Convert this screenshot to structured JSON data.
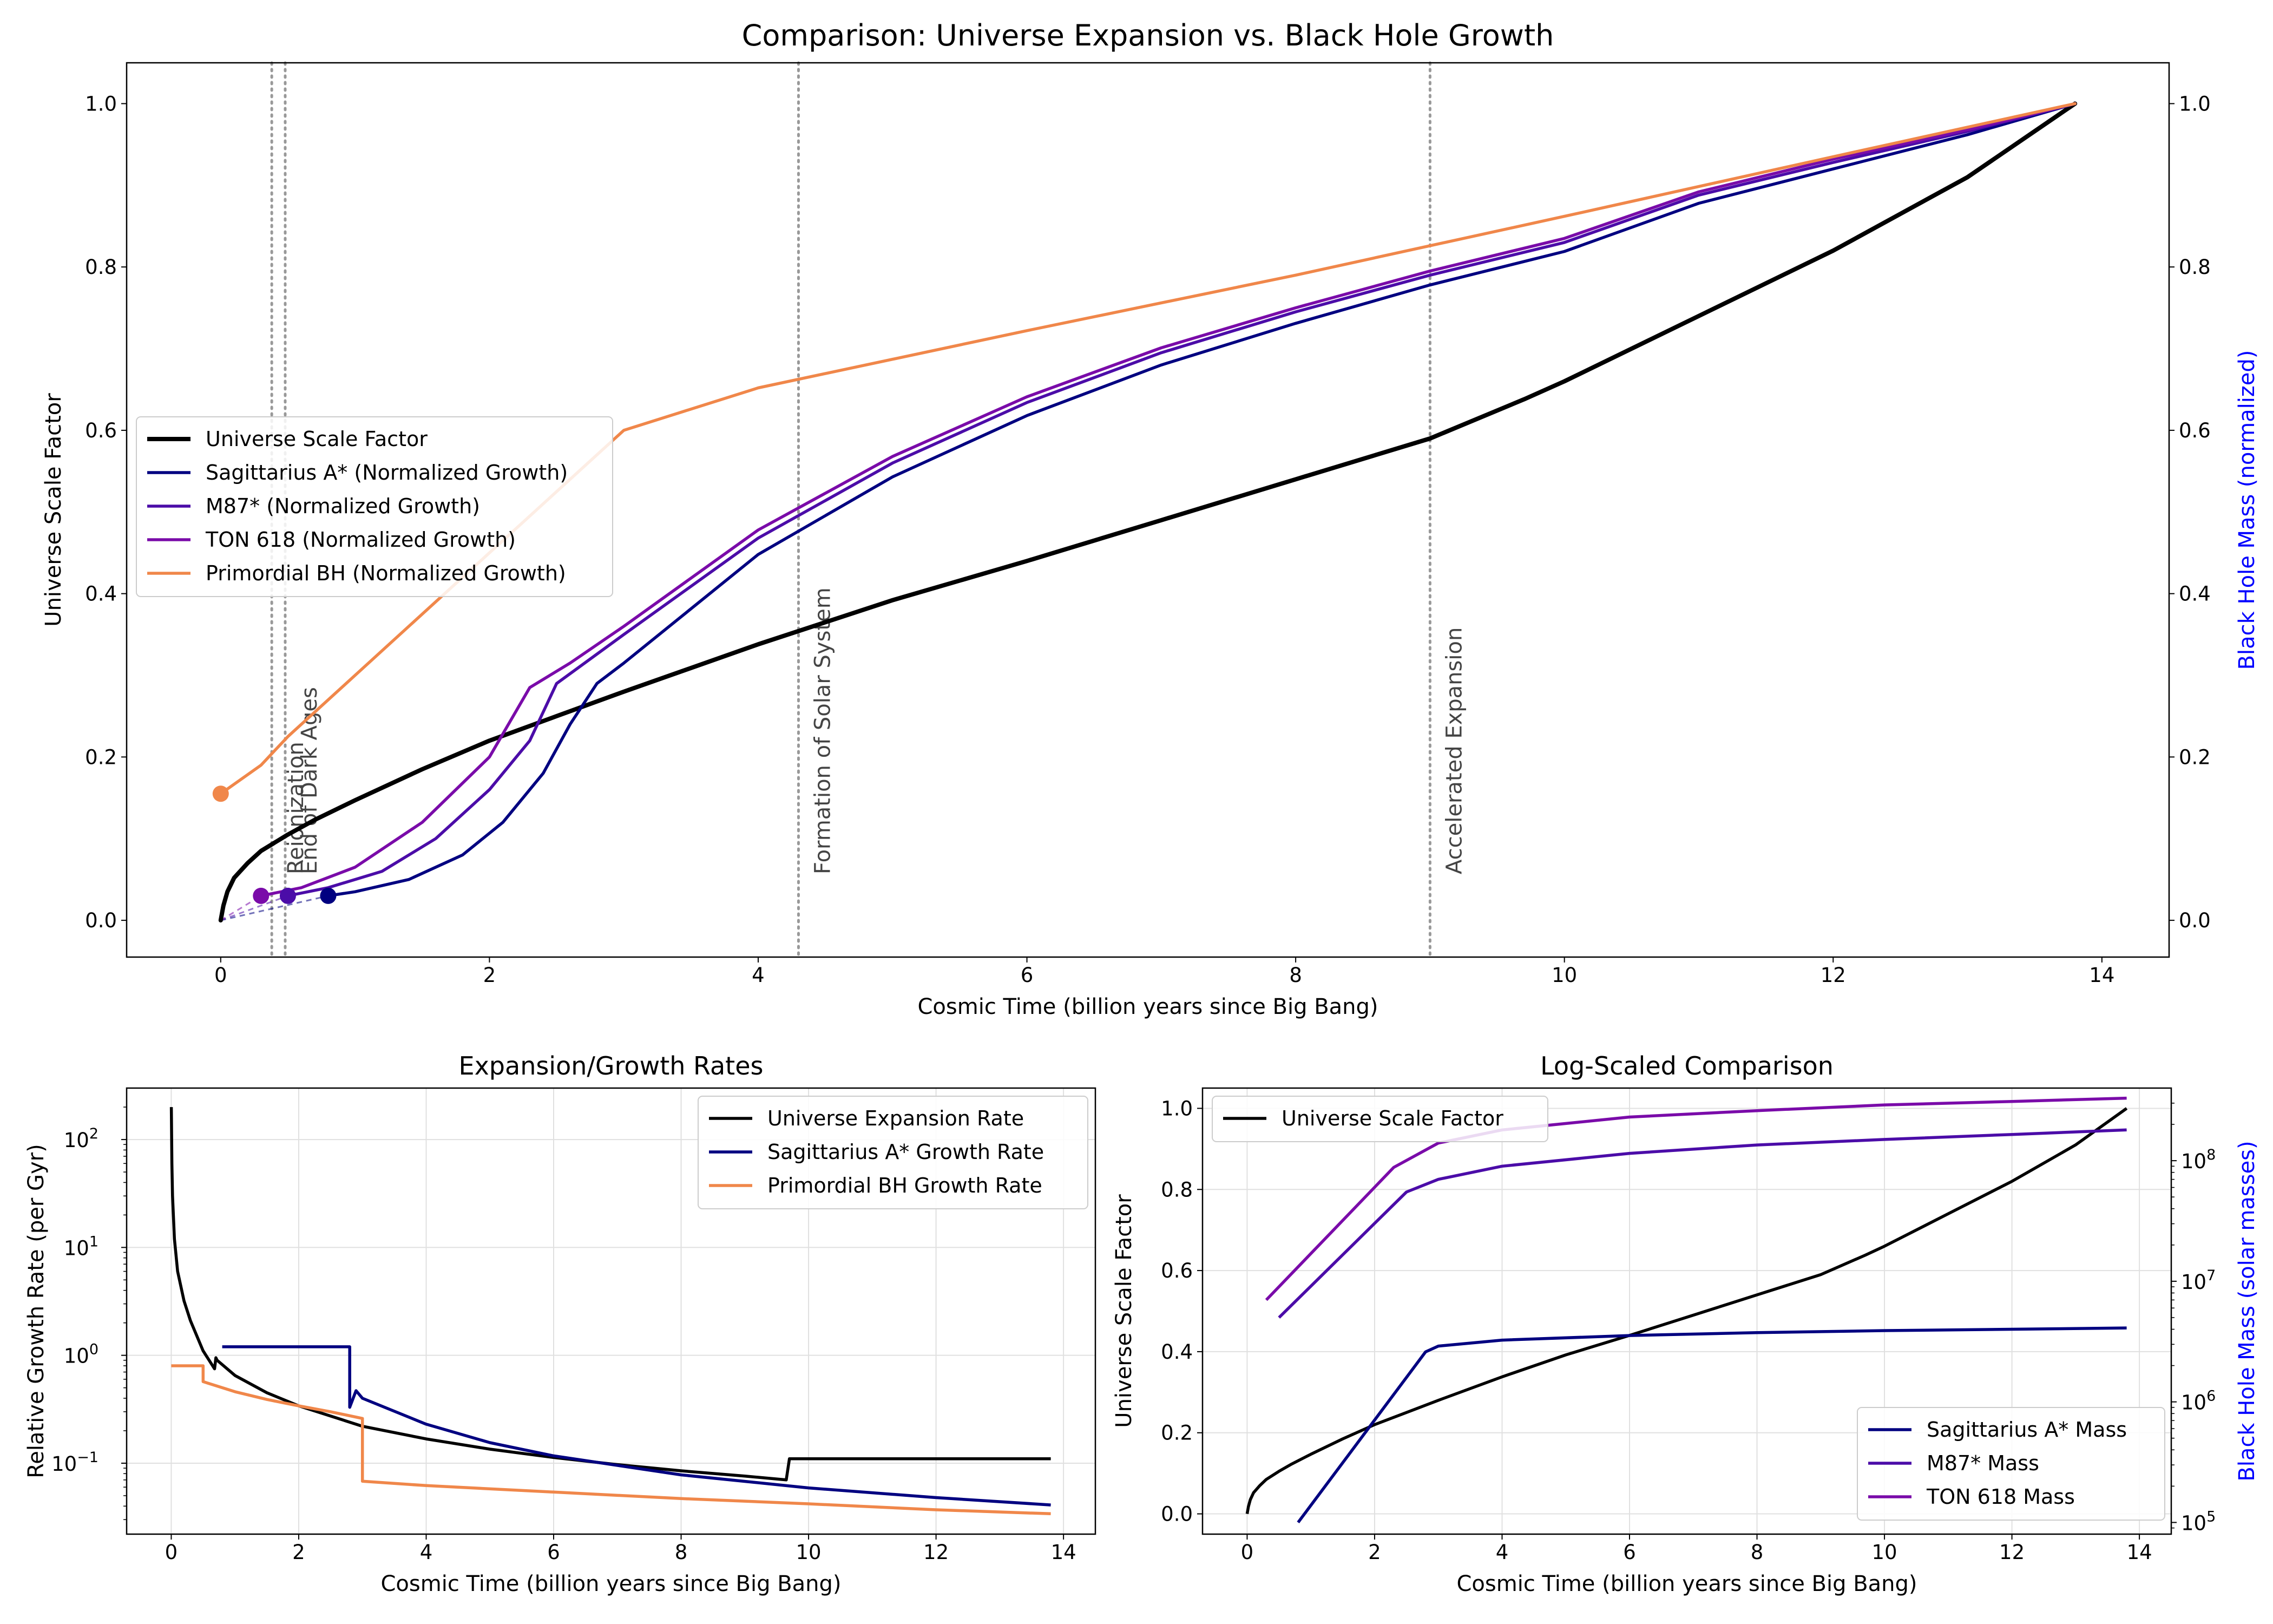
{
  "colors": {
    "universe": "#000000",
    "sgr": "#000080",
    "m87": "#4b0ca8",
    "ton": "#7a0ba9",
    "primordial": "#f0874a",
    "event_line": "#999999",
    "right_axis_label": "#0000ff",
    "grid": "#e0e0e0"
  },
  "chart_data": [
    {
      "id": "main",
      "type": "line",
      "title": "Comparison: Universe Expansion vs. Black Hole Growth",
      "xlabel": "Cosmic Time (billion years since Big Bang)",
      "ylabel": "Universe Scale Factor",
      "y2label": "Black Hole Mass (normalized)",
      "xlim": [
        -0.7,
        14.5
      ],
      "ylim": [
        -0.045,
        1.05
      ],
      "y2lim": [
        -0.045,
        1.05
      ],
      "xticks": [
        0,
        2,
        4,
        6,
        8,
        10,
        12,
        14
      ],
      "yticks": [
        0.0,
        0.2,
        0.4,
        0.6,
        0.8,
        1.0
      ],
      "y2ticks": [
        0.0,
        0.2,
        0.4,
        0.6,
        0.8,
        1.0
      ],
      "grid": false,
      "legend_position": "center-left",
      "events": [
        {
          "x": 0.38,
          "label": "Reionization"
        },
        {
          "x": 0.48,
          "label": "End of Dark Ages"
        },
        {
          "x": 4.3,
          "label": "Formation of Solar System"
        },
        {
          "x": 9.0,
          "label": "Accelerated Expansion"
        }
      ],
      "series": [
        {
          "name": "Universe Scale Factor",
          "color_key": "universe",
          "width": 8,
          "x": [
            0,
            0.02,
            0.05,
            0.1,
            0.2,
            0.3,
            0.5,
            0.7,
            1,
            1.5,
            2,
            2.5,
            3,
            4,
            5,
            6,
            7,
            8,
            9,
            9.7,
            10,
            11,
            12,
            13,
            13.8
          ],
          "y": [
            0,
            0.018,
            0.035,
            0.052,
            0.07,
            0.085,
            0.105,
            0.123,
            0.147,
            0.185,
            0.22,
            0.25,
            0.28,
            0.338,
            0.392,
            0.44,
            0.49,
            0.54,
            0.59,
            0.638,
            0.66,
            0.74,
            0.82,
            0.91,
            1.0
          ]
        },
        {
          "name": "Sagittarius A* (Normalized Growth)",
          "color_key": "sgr",
          "width": 5.5,
          "x": [
            0.8,
            1,
            1.4,
            1.8,
            2.1,
            2.4,
            2.6,
            2.8,
            3,
            4,
            5,
            6,
            7,
            8,
            9,
            10,
            11,
            12,
            13,
            13.8
          ],
          "y": [
            0.03,
            0.035,
            0.05,
            0.08,
            0.12,
            0.18,
            0.24,
            0.29,
            0.315,
            0.448,
            0.543,
            0.618,
            0.68,
            0.731,
            0.778,
            0.819,
            0.878,
            0.92,
            0.962,
            1.0
          ]
        },
        {
          "name": "M87* (Normalized Growth)",
          "color_key": "m87",
          "width": 5.5,
          "x": [
            0.5,
            0.8,
            1.2,
            1.6,
            2,
            2.3,
            2.5,
            3,
            4,
            5,
            6,
            7,
            8,
            9,
            10,
            11,
            12,
            13,
            13.8
          ],
          "y": [
            0.03,
            0.04,
            0.06,
            0.1,
            0.16,
            0.22,
            0.29,
            0.35,
            0.468,
            0.56,
            0.634,
            0.695,
            0.745,
            0.79,
            0.83,
            0.888,
            0.928,
            0.966,
            1.0
          ]
        },
        {
          "name": "TON 618 (Normalized Growth)",
          "color_key": "ton",
          "width": 5.5,
          "x": [
            0.3,
            0.6,
            1,
            1.5,
            2,
            2.3,
            2.6,
            3,
            4,
            5,
            6,
            7,
            8,
            9,
            10,
            11,
            12,
            13,
            13.8
          ],
          "y": [
            0.03,
            0.04,
            0.065,
            0.12,
            0.2,
            0.285,
            0.315,
            0.36,
            0.478,
            0.568,
            0.641,
            0.701,
            0.75,
            0.795,
            0.835,
            0.892,
            0.932,
            0.968,
            1.0
          ]
        },
        {
          "name": "Primordial BH (Normalized Growth)",
          "color_key": "primordial",
          "width": 5.5,
          "x": [
            0,
            0.3,
            0.5,
            1,
            2,
            3,
            4,
            6,
            8,
            10,
            12,
            13.8
          ],
          "y": [
            0.155,
            0.19,
            0.225,
            0.3,
            0.45,
            0.6,
            0.652,
            0.722,
            0.79,
            0.862,
            0.935,
            1.0
          ]
        }
      ],
      "start_markers": [
        {
          "series": "Sagittarius A* (Normalized Growth)",
          "x": 0.8,
          "y": 0.03
        },
        {
          "series": "M87* (Normalized Growth)",
          "x": 0.5,
          "y": 0.03
        },
        {
          "series": "TON 618 (Normalized Growth)",
          "x": 0.3,
          "y": 0.03
        },
        {
          "series": "Primordial BH (Normalized Growth)",
          "x": 0.0,
          "y": 0.155
        }
      ]
    },
    {
      "id": "rates",
      "type": "line",
      "title": "Expansion/Growth Rates",
      "xlabel": "Cosmic Time (billion years since Big Bang)",
      "ylabel": "Relative Growth Rate (per Gyr)",
      "yscale": "log",
      "xlim": [
        -0.7,
        14.5
      ],
      "ylim": [
        0.022,
        300
      ],
      "xticks": [
        0,
        2,
        4,
        6,
        8,
        10,
        12,
        14
      ],
      "yticks": [
        0.1,
        1,
        10,
        100
      ],
      "ytick_labels": [
        "10",
        "10",
        "10",
        "10"
      ],
      "ytick_exponents": [
        "−1",
        "0",
        "1",
        "2"
      ],
      "grid": true,
      "legend_position": "top-right",
      "series": [
        {
          "name": "Universe Expansion Rate",
          "color_key": "universe",
          "width": 5.5,
          "x": [
            0.001,
            0.01,
            0.02,
            0.05,
            0.1,
            0.2,
            0.3,
            0.5,
            0.68,
            0.7,
            0.72,
            1,
            1.5,
            2,
            3,
            4,
            5,
            6,
            7,
            8,
            9,
            9.65,
            9.7,
            10,
            12,
            13.8
          ],
          "y": [
            200,
            60,
            30,
            12,
            6,
            3.2,
            2.1,
            1.1,
            0.75,
            0.95,
            0.9,
            0.65,
            0.45,
            0.34,
            0.22,
            0.168,
            0.135,
            0.113,
            0.097,
            0.085,
            0.076,
            0.07,
            0.11,
            0.11,
            0.11,
            0.11
          ]
        },
        {
          "name": "Sagittarius A* Growth Rate",
          "color_key": "sgr",
          "width": 5.5,
          "x": [
            0.8,
            2.8,
            2.8,
            2.9,
            3,
            4,
            5,
            6,
            8,
            10,
            12,
            13.8
          ],
          "y": [
            1.2,
            1.2,
            0.33,
            0.47,
            0.4,
            0.23,
            0.155,
            0.117,
            0.078,
            0.059,
            0.048,
            0.041
          ]
        },
        {
          "name": "Primordial BH Growth Rate",
          "color_key": "primordial",
          "width": 5.5,
          "x": [
            0,
            0.5,
            0.5,
            1,
            1.5,
            2,
            2.5,
            3,
            3,
            4,
            6,
            8,
            10,
            12,
            13.8
          ],
          "y": [
            0.8,
            0.8,
            0.57,
            0.46,
            0.39,
            0.34,
            0.3,
            0.26,
            0.068,
            0.062,
            0.054,
            0.047,
            0.042,
            0.037,
            0.034
          ]
        }
      ]
    },
    {
      "id": "logscaled",
      "type": "line",
      "title": "Log-Scaled Comparison",
      "xlabel": "Cosmic Time (billion years since Big Bang)",
      "ylabel": "Universe Scale Factor",
      "y2label": "Black Hole Mass (solar masses)",
      "y2scale": "log",
      "xlim": [
        -0.7,
        14.5
      ],
      "ylim": [
        -0.05,
        1.05
      ],
      "y2lim": [
        80000,
        400000000
      ],
      "xticks": [
        0,
        2,
        4,
        6,
        8,
        10,
        12,
        14
      ],
      "yticks": [
        0.0,
        0.2,
        0.4,
        0.6,
        0.8,
        1.0
      ],
      "y2ticks": [
        100000,
        1000000,
        10000000,
        100000000
      ],
      "y2tick_labels": [
        "10",
        "10",
        "10",
        "10"
      ],
      "y2tick_exponents": [
        "5",
        "6",
        "7",
        "8"
      ],
      "grid": true,
      "legend_positions": [
        "top-left",
        "bottom-right"
      ],
      "series_left": [
        {
          "name": "Universe Scale Factor",
          "color_key": "universe",
          "width": 5.5,
          "x": [
            0,
            0.02,
            0.05,
            0.1,
            0.2,
            0.3,
            0.5,
            0.7,
            1,
            1.5,
            2,
            2.5,
            3,
            4,
            5,
            6,
            7,
            8,
            9,
            9.7,
            10,
            11,
            12,
            13,
            13.8
          ],
          "y": [
            0,
            0.018,
            0.035,
            0.052,
            0.07,
            0.085,
            0.105,
            0.123,
            0.147,
            0.185,
            0.22,
            0.25,
            0.28,
            0.338,
            0.392,
            0.44,
            0.49,
            0.54,
            0.59,
            0.638,
            0.66,
            0.74,
            0.82,
            0.91,
            1.0
          ]
        }
      ],
      "series_right": [
        {
          "name": "Sagittarius A* Mass",
          "color_key": "sgr",
          "width": 5.5,
          "x": [
            0.8,
            2.8,
            3,
            4,
            6,
            8,
            10,
            12,
            13.8
          ],
          "y": [
            100000,
            2600000,
            2900000,
            3250000,
            3550000,
            3750000,
            3900000,
            4000000,
            4100000
          ]
        },
        {
          "name": "M87* Mass",
          "color_key": "m87",
          "width": 5.5,
          "x": [
            0.5,
            2.5,
            3,
            4,
            6,
            8,
            10,
            12,
            13.8
          ],
          "y": [
            5000000,
            55000000,
            70000000,
            90000000,
            115000000,
            135000000,
            150000000,
            165000000,
            180000000
          ]
        },
        {
          "name": "TON 618 Mass",
          "color_key": "ton",
          "width": 5.5,
          "x": [
            0.3,
            2.3,
            3,
            4,
            6,
            8,
            10,
            12,
            13.8
          ],
          "y": [
            7000000,
            88000000,
            140000000,
            180000000,
            230000000,
            260000000,
            290000000,
            310000000,
            330000000
          ]
        }
      ]
    }
  ]
}
